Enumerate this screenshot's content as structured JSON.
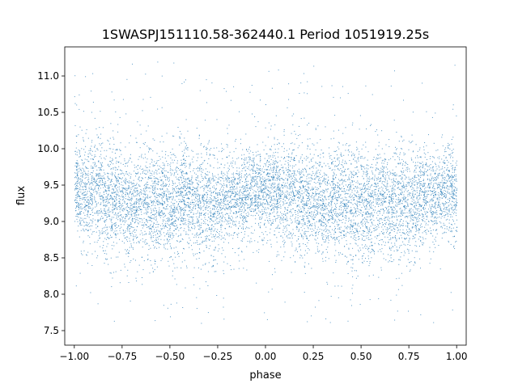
{
  "chart_data": {
    "type": "scatter",
    "title": "1SWASPJ151110.58-362440.1 Period 1051919.25s",
    "xlabel": "phase",
    "ylabel": "flux",
    "xlim": [
      -1.05,
      1.05
    ],
    "ylim": [
      7.3,
      11.4
    ],
    "xticks": [
      -1.0,
      -0.75,
      -0.5,
      -0.25,
      0.0,
      0.25,
      0.5,
      0.75,
      1.0
    ],
    "xtick_labels": [
      "−1.00",
      "−0.75",
      "−0.50",
      "−0.25",
      "0.00",
      "0.25",
      "0.50",
      "0.75",
      "1.00"
    ],
    "yticks": [
      7.5,
      8.0,
      8.5,
      9.0,
      9.5,
      10.0,
      10.5,
      11.0
    ],
    "ytick_labels": [
      "7.5",
      "8.0",
      "8.5",
      "9.0",
      "9.5",
      "10.0",
      "10.5",
      "11.0"
    ],
    "marker_color": "#1f77b4",
    "grid": false,
    "legend": "none",
    "series": [
      {
        "description_x": [
          -1.0,
          -0.9,
          -0.8,
          -0.7,
          -0.6,
          -0.5,
          -0.4,
          -0.3,
          -0.2,
          -0.1,
          0.0,
          0.1,
          0.2,
          0.3,
          0.4,
          0.5,
          0.6,
          0.7,
          0.8,
          0.9,
          1.0
        ],
        "median_flux": [
          9.45,
          9.4,
          9.3,
          9.25,
          9.3,
          9.2,
          9.3,
          9.25,
          9.3,
          9.35,
          9.45,
          9.4,
          9.3,
          9.25,
          9.3,
          9.2,
          9.3,
          9.25,
          9.3,
          9.4,
          9.45
        ],
        "spread": [
          0.3,
          0.35,
          0.4,
          0.35,
          0.4,
          0.4,
          0.35,
          0.4,
          0.35,
          0.3,
          0.3,
          0.35,
          0.4,
          0.35,
          0.4,
          0.4,
          0.35,
          0.4,
          0.35,
          0.3,
          0.3
        ]
      }
    ]
  }
}
